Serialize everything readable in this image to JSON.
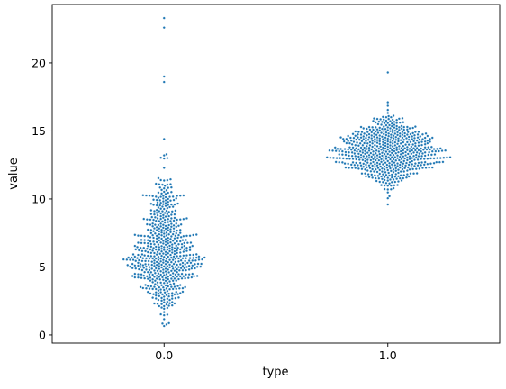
{
  "chart_data": {
    "type": "scatter",
    "subtype": "swarm",
    "title": "",
    "xlabel": "type",
    "ylabel": "value",
    "categories": [
      "0.0",
      "1.0"
    ],
    "ylim": [
      -0.6,
      24.3
    ],
    "yticks": [
      0,
      5,
      10,
      15,
      20
    ],
    "grid": false,
    "marker_color": "#1f77b4",
    "marker_edge_color": "#ffffff",
    "series": [
      {
        "category": "0.0",
        "count": 600,
        "approx_mean": 6.8,
        "approx_std": 2.9,
        "range": [
          0.6,
          23.3
        ],
        "densest_value": 5.8,
        "outliers": [
          18.6,
          19.0,
          22.6,
          23.3
        ]
      },
      {
        "category": "1.0",
        "count": 600,
        "approx_mean": 13.5,
        "approx_std": 1.2,
        "range": [
          9.6,
          19.3
        ],
        "densest_value": 13.0,
        "outliers": [
          9.6,
          19.3
        ]
      }
    ]
  }
}
